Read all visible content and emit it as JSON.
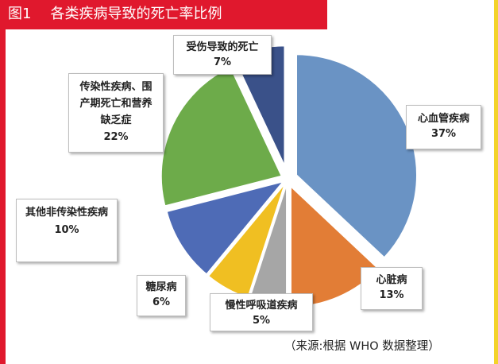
{
  "figure": {
    "number": "图1",
    "title": "各类疾病导致的死亡率比例",
    "source": "（来源:根据 WHO 数据整理）"
  },
  "colors": {
    "header": "#e0182d",
    "right_border": "#f3d32a"
  },
  "chart_data": {
    "type": "pie",
    "unit": "%",
    "slices": [
      {
        "name": "心血管疾病",
        "value": 37,
        "label": "37%",
        "color": "#6a93c4"
      },
      {
        "name": "心脏病",
        "value": 13,
        "label": "13%",
        "color": "#e27d36"
      },
      {
        "name": "慢性呼吸道疾病",
        "value": 5,
        "label": "5%",
        "color": "#a6a6a6"
      },
      {
        "name": "糖尿病",
        "value": 6,
        "label": "6%",
        "color": "#f0bf22"
      },
      {
        "name": "其他非传染性疾病",
        "value": 10,
        "label": "10%",
        "color": "#4e6bb6"
      },
      {
        "name": "传染性疾病、围产期死亡和营养缺乏症",
        "value": 22,
        "label": "22%",
        "color": "#6dab4a"
      },
      {
        "name": "受伤导致的死亡",
        "value": 7,
        "label": "7%",
        "color": "#3a5189"
      }
    ]
  }
}
